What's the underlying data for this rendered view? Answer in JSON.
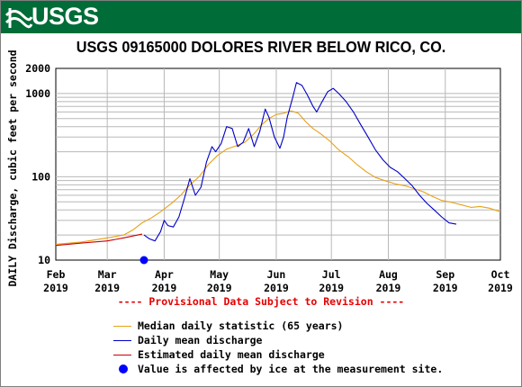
{
  "banner": {
    "logo_text": "USGS",
    "color": "#006c37"
  },
  "chart_data": {
    "type": "line",
    "title": "USGS 09165000 DOLORES RIVER BELOW RICO, CO.",
    "ylabel": "DAILY Discharge, cubic feet per second",
    "xlabel": "",
    "y_scale": "log",
    "ylim": [
      10,
      2000
    ],
    "xlim": [
      "2019-02-01",
      "2019-10-01"
    ],
    "y_ticks": [
      {
        "value": 10,
        "label": "10"
      },
      {
        "value": 100,
        "label": "100"
      },
      {
        "value": 1000,
        "label": "1000"
      },
      {
        "value": 2000,
        "label": "2000"
      }
    ],
    "x_ticks": [
      {
        "date": "2019-02-01",
        "label": "Feb",
        "year": "2019"
      },
      {
        "date": "2019-03-01",
        "label": "Mar",
        "year": "2019"
      },
      {
        "date": "2019-04-01",
        "label": "Apr",
        "year": "2019"
      },
      {
        "date": "2019-05-01",
        "label": "May",
        "year": "2019"
      },
      {
        "date": "2019-06-01",
        "label": "Jun",
        "year": "2019"
      },
      {
        "date": "2019-07-01",
        "label": "Jul",
        "year": "2019"
      },
      {
        "date": "2019-08-01",
        "label": "Aug",
        "year": "2019"
      },
      {
        "date": "2019-09-01",
        "label": "Sep",
        "year": "2019"
      },
      {
        "date": "2019-10-01",
        "label": "Oct",
        "year": "2019"
      }
    ],
    "grid": true,
    "series": [
      {
        "key": "median",
        "color": "#e6a118",
        "points": [
          [
            "2019-02-01",
            15.5
          ],
          [
            "2019-02-15",
            16.5
          ],
          [
            "2019-03-01",
            18.5
          ],
          [
            "2019-03-10",
            20
          ],
          [
            "2019-03-15",
            23
          ],
          [
            "2019-03-20",
            28
          ],
          [
            "2019-03-25",
            32
          ],
          [
            "2019-03-30",
            38
          ],
          [
            "2019-04-05",
            48
          ],
          [
            "2019-04-10",
            60
          ],
          [
            "2019-04-15",
            80
          ],
          [
            "2019-04-20",
            100
          ],
          [
            "2019-04-25",
            140
          ],
          [
            "2019-04-30",
            180
          ],
          [
            "2019-05-05",
            215
          ],
          [
            "2019-05-10",
            235
          ],
          [
            "2019-05-15",
            260
          ],
          [
            "2019-05-20",
            330
          ],
          [
            "2019-05-24",
            420
          ],
          [
            "2019-05-28",
            500
          ],
          [
            "2019-06-01",
            560
          ],
          [
            "2019-06-05",
            580
          ],
          [
            "2019-06-09",
            620
          ],
          [
            "2019-06-13",
            580
          ],
          [
            "2019-06-17",
            460
          ],
          [
            "2019-06-21",
            380
          ],
          [
            "2019-06-25",
            330
          ],
          [
            "2019-06-30",
            270
          ],
          [
            "2019-07-05",
            210
          ],
          [
            "2019-07-10",
            175
          ],
          [
            "2019-07-15",
            140
          ],
          [
            "2019-07-20",
            115
          ],
          [
            "2019-07-25",
            98
          ],
          [
            "2019-07-30",
            90
          ],
          [
            "2019-08-05",
            82
          ],
          [
            "2019-08-10",
            78
          ],
          [
            "2019-08-15",
            72
          ],
          [
            "2019-08-20",
            66
          ],
          [
            "2019-08-25",
            58
          ],
          [
            "2019-08-30",
            52
          ],
          [
            "2019-09-05",
            49
          ],
          [
            "2019-09-10",
            46
          ],
          [
            "2019-09-15",
            43
          ],
          [
            "2019-09-20",
            44
          ],
          [
            "2019-09-25",
            42
          ],
          [
            "2019-10-01",
            38
          ]
        ]
      },
      {
        "key": "daily_mean",
        "color": "#0000c8",
        "points": [
          [
            "2019-03-21",
            20
          ],
          [
            "2019-03-24",
            18
          ],
          [
            "2019-03-27",
            17
          ],
          [
            "2019-03-30",
            22
          ],
          [
            "2019-04-01",
            30
          ],
          [
            "2019-04-03",
            26
          ],
          [
            "2019-04-06",
            25
          ],
          [
            "2019-04-09",
            33
          ],
          [
            "2019-04-12",
            55
          ],
          [
            "2019-04-15",
            95
          ],
          [
            "2019-04-18",
            60
          ],
          [
            "2019-04-21",
            75
          ],
          [
            "2019-04-24",
            150
          ],
          [
            "2019-04-27",
            230
          ],
          [
            "2019-04-29",
            200
          ],
          [
            "2019-05-02",
            250
          ],
          [
            "2019-05-05",
            400
          ],
          [
            "2019-05-08",
            380
          ],
          [
            "2019-05-11",
            230
          ],
          [
            "2019-05-14",
            260
          ],
          [
            "2019-05-17",
            380
          ],
          [
            "2019-05-20",
            230
          ],
          [
            "2019-05-23",
            350
          ],
          [
            "2019-05-26",
            650
          ],
          [
            "2019-05-28",
            520
          ],
          [
            "2019-05-31",
            300
          ],
          [
            "2019-06-03",
            220
          ],
          [
            "2019-06-05",
            300
          ],
          [
            "2019-06-07",
            520
          ],
          [
            "2019-06-10",
            900
          ],
          [
            "2019-06-12",
            1350
          ],
          [
            "2019-06-15",
            1250
          ],
          [
            "2019-06-18",
            950
          ],
          [
            "2019-06-21",
            700
          ],
          [
            "2019-06-23",
            600
          ],
          [
            "2019-06-26",
            800
          ],
          [
            "2019-06-29",
            1050
          ],
          [
            "2019-07-02",
            1150
          ],
          [
            "2019-07-05",
            1000
          ],
          [
            "2019-07-09",
            800
          ],
          [
            "2019-07-13",
            600
          ],
          [
            "2019-07-17",
            420
          ],
          [
            "2019-07-21",
            300
          ],
          [
            "2019-07-25",
            210
          ],
          [
            "2019-07-29",
            160
          ],
          [
            "2019-08-02",
            130
          ],
          [
            "2019-08-06",
            115
          ],
          [
            "2019-08-10",
            95
          ],
          [
            "2019-08-14",
            78
          ],
          [
            "2019-08-18",
            60
          ],
          [
            "2019-08-22",
            48
          ],
          [
            "2019-08-26",
            40
          ],
          [
            "2019-08-30",
            33
          ],
          [
            "2019-09-03",
            28
          ],
          [
            "2019-09-07",
            27
          ]
        ]
      },
      {
        "key": "estimated",
        "color": "#c80000",
        "points": [
          [
            "2019-02-01",
            15
          ],
          [
            "2019-02-15",
            16
          ],
          [
            "2019-03-01",
            17
          ],
          [
            "2019-03-10",
            18.5
          ],
          [
            "2019-03-15",
            19.5
          ],
          [
            "2019-03-20",
            20.5
          ]
        ]
      },
      {
        "key": "ice",
        "color": "#0000ff",
        "points": [
          [
            "2019-03-21",
            10
          ]
        ]
      }
    ]
  },
  "provisional_notice": "---- Provisional Data Subject to Revision ----",
  "legend": [
    {
      "key": "median",
      "label": "Median daily statistic (65 years)",
      "color": "#e6a118",
      "marker": "line"
    },
    {
      "key": "daily_mean",
      "label": "Daily mean discharge",
      "color": "#0000c8",
      "marker": "line"
    },
    {
      "key": "estimated",
      "label": "Estimated daily mean discharge",
      "color": "#c80000",
      "marker": "line"
    },
    {
      "key": "ice",
      "label": "Value is affected by ice at the measurement site.",
      "color": "#0000ff",
      "marker": "dot"
    }
  ]
}
